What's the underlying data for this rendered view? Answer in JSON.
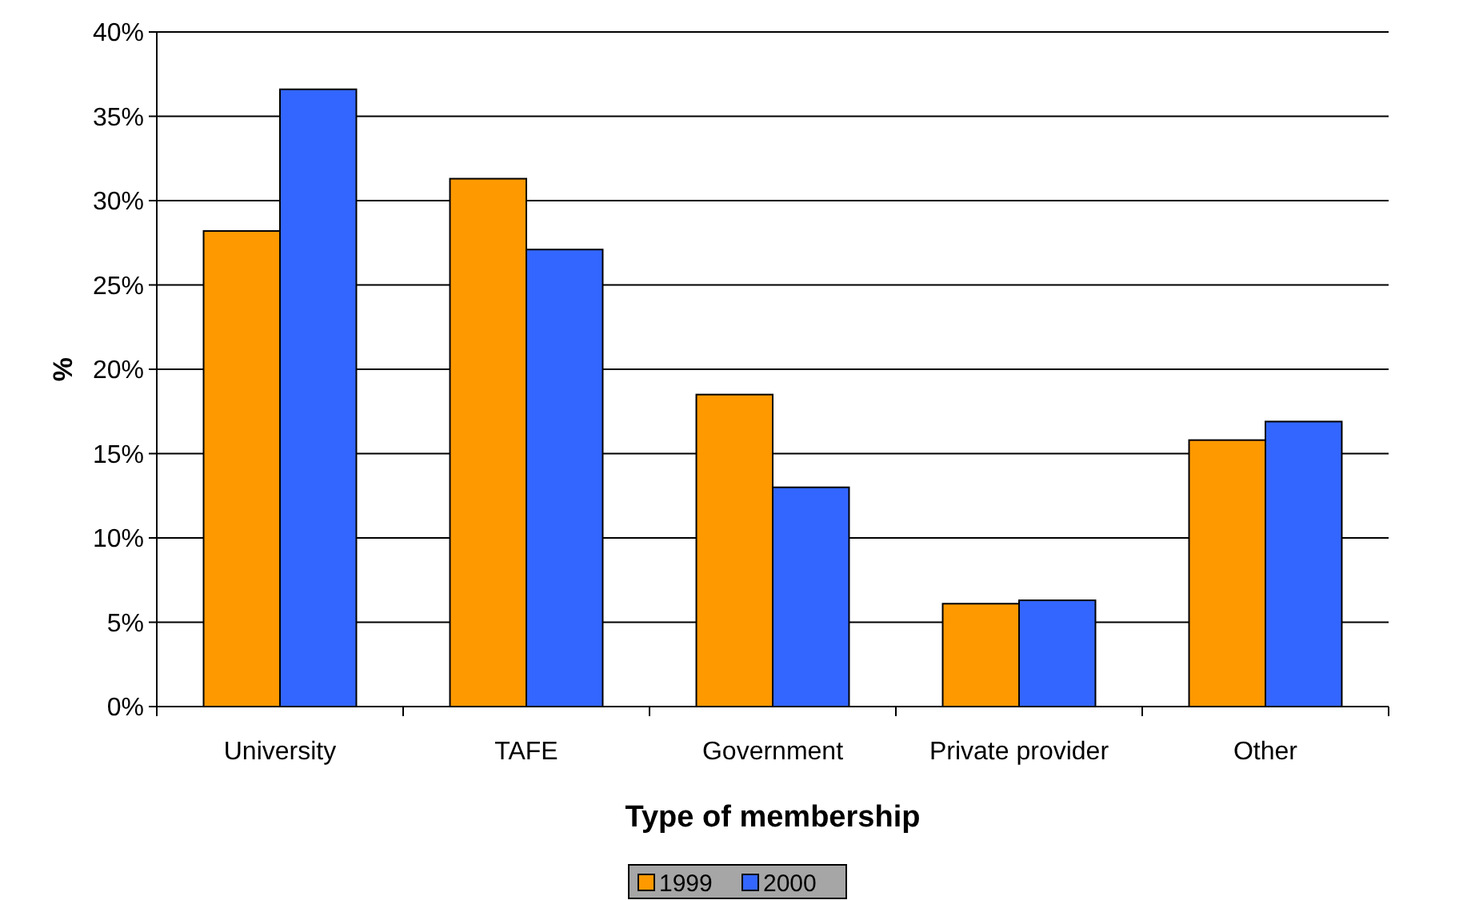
{
  "chart_data": {
    "type": "bar",
    "xlabel": "Type of membership",
    "ylabel": "%",
    "categories": [
      "University",
      "TAFE",
      "Government",
      "Private provider",
      "Other"
    ],
    "series": [
      {
        "name": "1999",
        "color": "#ff9900",
        "values": [
          28.2,
          31.3,
          18.5,
          6.1,
          15.8
        ]
      },
      {
        "name": "2000",
        "color": "#3366ff",
        "values": [
          36.6,
          27.1,
          13.0,
          6.3,
          16.9
        ]
      }
    ],
    "ylim": [
      0,
      40
    ],
    "yticks": [
      {
        "value": 0,
        "label": "0%"
      },
      {
        "value": 5,
        "label": "5%"
      },
      {
        "value": 10,
        "label": "10%"
      },
      {
        "value": 15,
        "label": "15%"
      },
      {
        "value": 20,
        "label": "20%"
      },
      {
        "value": 25,
        "label": "25%"
      },
      {
        "value": 30,
        "label": "30%"
      },
      {
        "value": 35,
        "label": "35%"
      },
      {
        "value": 40,
        "label": "40%"
      }
    ],
    "grid": "y",
    "legend": "bottom"
  }
}
